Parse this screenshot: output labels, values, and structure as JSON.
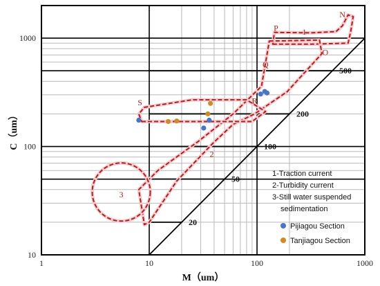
{
  "chart_data": {
    "type": "scatter",
    "title": "",
    "xlabel": "M（um）",
    "ylabel": "C（um）",
    "xscale": "log",
    "yscale": "log",
    "xlim": [
      1,
      1000
    ],
    "ylim": [
      10,
      2000
    ],
    "x_ticks": [
      {
        "value": 1,
        "label": "1"
      },
      {
        "value": 10,
        "label": "10"
      },
      {
        "value": 100,
        "label": "100"
      },
      {
        "value": 1000,
        "label": "1000"
      }
    ],
    "y_ticks": [
      {
        "value": 10,
        "label": "10"
      },
      {
        "value": 100,
        "label": "100"
      },
      {
        "value": 1000,
        "label": "1000"
      }
    ],
    "reference_lines": [
      {
        "label": "20",
        "value": 20
      },
      {
        "label": "50",
        "value": 50
      },
      {
        "label": "100",
        "value": 100
      },
      {
        "label": "200",
        "value": 200
      },
      {
        "label": "500",
        "value": 500
      }
    ],
    "region_letters": [
      "N",
      "P",
      "O",
      "Q",
      "R",
      "S"
    ],
    "region_numbers": [
      "1",
      "2",
      "3"
    ],
    "legend": {
      "items": [
        "1-Traction current",
        "2-Turbidity current",
        "3-Still water suspended",
        "sedimentation"
      ],
      "placement": "bottom-right"
    },
    "series": [
      {
        "name": "Pijiagou Section",
        "color": "#4a74c4",
        "points": [
          {
            "x": 8,
            "y": 175
          },
          {
            "x": 32,
            "y": 148
          },
          {
            "x": 36,
            "y": 175
          },
          {
            "x": 108,
            "y": 305
          },
          {
            "x": 118,
            "y": 322
          },
          {
            "x": 124,
            "y": 312
          }
        ]
      },
      {
        "name": "Tanjiagou Section",
        "color": "#d08b28",
        "points": [
          {
            "x": 15,
            "y": 170
          },
          {
            "x": 18,
            "y": 172
          },
          {
            "x": 35,
            "y": 200
          },
          {
            "x": 37,
            "y": 250
          }
        ]
      }
    ],
    "colors": {
      "region_outline": "#a3281a",
      "region_halo": "#f6c9d3",
      "grid_major": "#000000",
      "grid_minor": "#b8b8b8"
    }
  }
}
